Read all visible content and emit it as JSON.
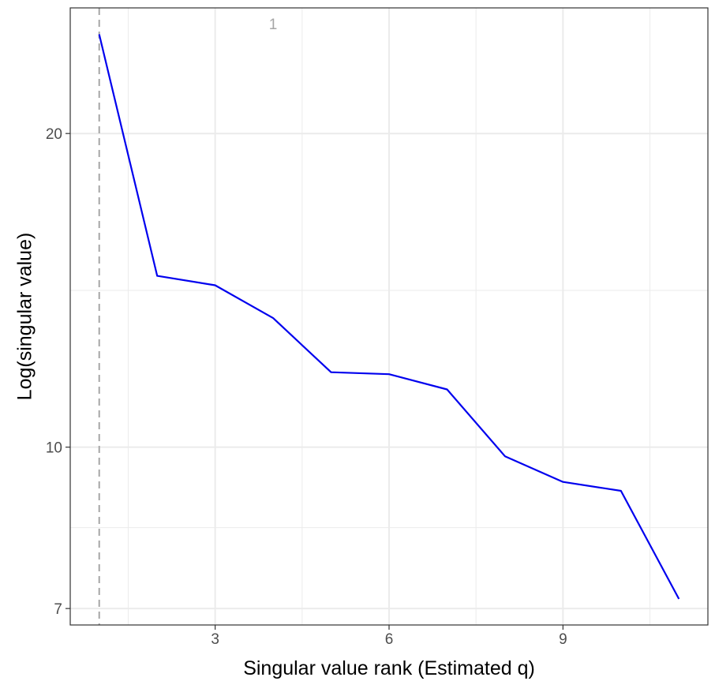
{
  "chart_data": {
    "type": "line",
    "xlabel": "Singular value rank (Estimated q)",
    "ylabel": "Log(singular value)",
    "y_scale": "log",
    "xlim": [
      0.5,
      11.5
    ],
    "ylim": [
      6.75,
      26.4
    ],
    "x_ticks": [
      3,
      6,
      9
    ],
    "x_minor_ticks": [
      1.5,
      4.5,
      7.5,
      10.5
    ],
    "y_ticks": [
      7,
      10,
      20
    ],
    "y_minor_ticks": [
      8.37,
      14.14
    ],
    "grid": true,
    "series": [
      {
        "x": [
          1,
          2,
          3,
          4,
          5,
          6,
          7,
          8,
          9,
          10,
          11
        ],
        "y": [
          24.9,
          14.6,
          14.3,
          13.3,
          11.8,
          11.75,
          11.36,
          9.8,
          9.26,
          9.08,
          7.15
        ]
      }
    ],
    "vline": {
      "x": 1,
      "label": "1"
    },
    "colors": {
      "line": "#0000ee",
      "vline": "#a6a6a6",
      "grid": "#ebebeb",
      "panel_border": "#333333"
    }
  }
}
